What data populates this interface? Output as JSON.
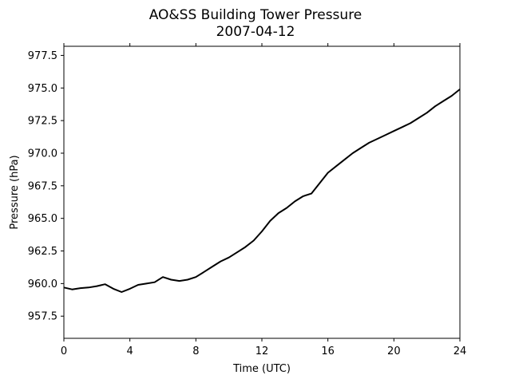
{
  "chart_data": {
    "type": "line",
    "title": "AO&SS Building Tower Pressure",
    "subtitle": "2007-04-12",
    "xlabel": "Time (UTC)",
    "ylabel": "Pressure (hPa)",
    "xlim": [
      0,
      24
    ],
    "ylim": [
      955.8,
      978.2
    ],
    "xticks": [
      "0",
      "4",
      "8",
      "12",
      "16",
      "20",
      "24"
    ],
    "xtick_values": [
      0,
      4,
      8,
      12,
      16,
      20,
      24
    ],
    "yticks": [
      "957.5",
      "960.0",
      "962.5",
      "965.0",
      "967.5",
      "970.0",
      "972.5",
      "975.0",
      "977.5"
    ],
    "ytick_values": [
      957.5,
      960.0,
      962.5,
      965.0,
      967.5,
      970.0,
      972.5,
      975.0,
      977.5
    ],
    "grid": false,
    "color": "#000000",
    "series": [
      {
        "x": [
          0,
          0.5,
          1,
          1.5,
          2,
          2.5,
          3,
          3.5,
          4,
          4.5,
          5,
          5.5,
          6,
          6.5,
          7,
          7.5,
          8,
          8.5,
          9,
          9.5,
          10,
          10.5,
          11,
          11.5,
          12,
          12.5,
          13,
          13.5,
          14,
          14.5,
          15,
          15.5,
          16,
          16.5,
          17,
          17.5,
          18,
          18.5,
          19,
          19.5,
          20,
          20.5,
          21,
          21.5,
          22,
          22.5,
          23,
          23.5,
          24
        ],
        "y": [
          959.7,
          959.55,
          959.65,
          959.7,
          959.8,
          959.95,
          959.6,
          959.35,
          959.6,
          959.9,
          960.0,
          960.1,
          960.5,
          960.3,
          960.2,
          960.3,
          960.5,
          960.9,
          961.3,
          961.7,
          962.0,
          962.4,
          962.8,
          963.3,
          964.0,
          964.8,
          965.4,
          965.8,
          966.3,
          966.7,
          966.9,
          967.7,
          968.5,
          969.0,
          969.5,
          970.0,
          970.4,
          970.8,
          971.1,
          971.4,
          971.7,
          972.0,
          972.3,
          972.7,
          973.1,
          973.6,
          974.0,
          974.4,
          974.9
        ]
      }
    ]
  }
}
